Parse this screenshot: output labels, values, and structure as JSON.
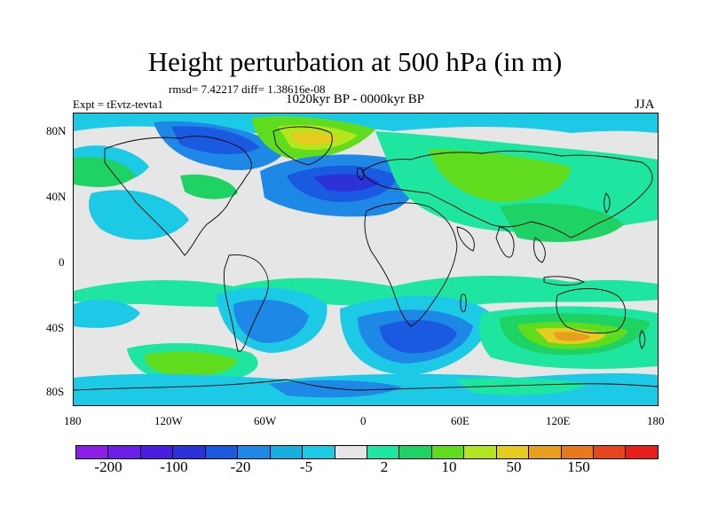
{
  "title": "Height perturbation at 500 hPa (in m)",
  "stats": "rmsd= 7.42217 diff= 1.38616e-08",
  "experiment": "Expt = tEvtz-tevta1",
  "period": "1020kyr BP - 0000kyr BP",
  "season": "JJA",
  "y_ticks": [
    "80N",
    "40N",
    "0",
    "40S",
    "80S"
  ],
  "x_ticks": [
    "180",
    "120W",
    "60W",
    "0",
    "60E",
    "120E",
    "180"
  ],
  "colorbar": {
    "colors": [
      "#8c1ee6",
      "#6a1ee6",
      "#4a1ee0",
      "#2a32d8",
      "#1a5ae0",
      "#1e88e6",
      "#18aee0",
      "#1ccae6",
      "#e6e6e6",
      "#1ee6a0",
      "#1ed264",
      "#60dc1e",
      "#b4e61e",
      "#e6cc1e",
      "#e6a01e",
      "#e6781e",
      "#e6461e",
      "#e61e1e"
    ],
    "labels": [
      "-200",
      "-100",
      "-20",
      "-5",
      "2",
      "10",
      "50",
      "150"
    ]
  },
  "palette": {
    "gray": "#e6e6e6",
    "teal": "#1ccae6",
    "sky": "#1e88e6",
    "blue": "#1a5ae0",
    "deep": "#2a32d8",
    "mint": "#1ee6a0",
    "green": "#1ed264",
    "lime": "#60dc1e",
    "yellow": "#b4e61e",
    "gold": "#e6cc1e",
    "orange": "#e6a01e"
  }
}
